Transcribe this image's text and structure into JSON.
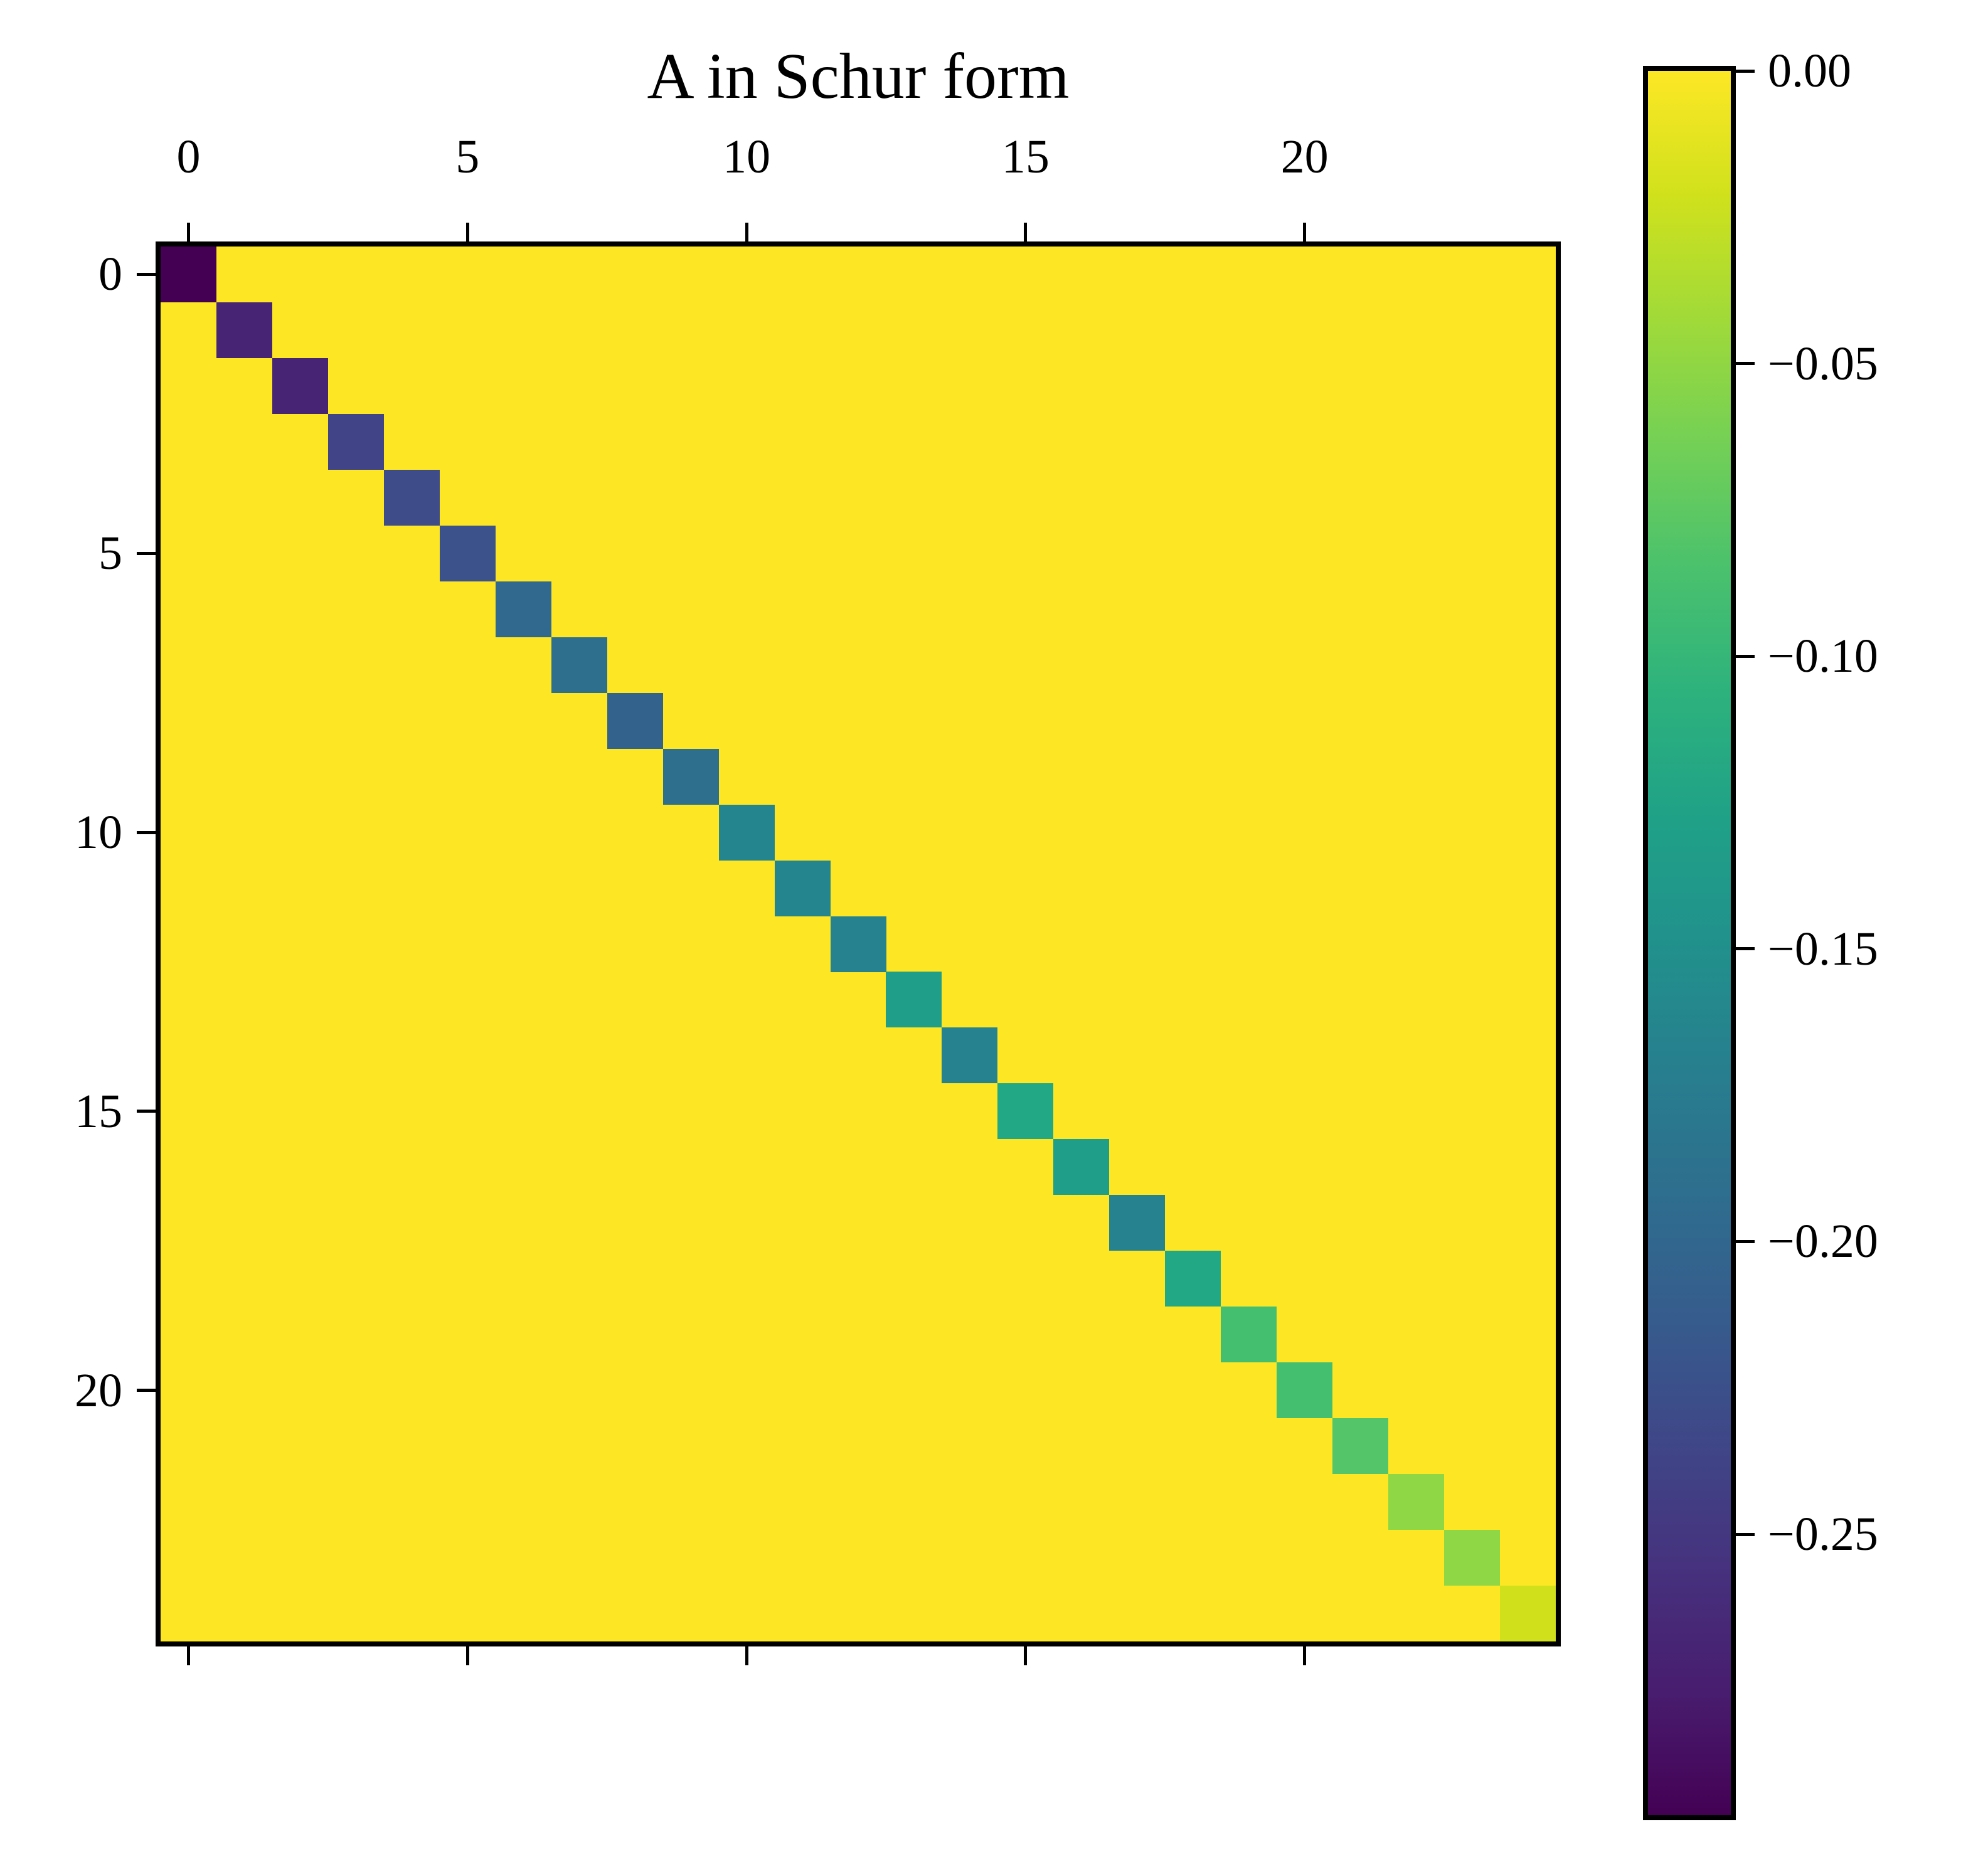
{
  "chart_data": {
    "type": "heatmap",
    "title": "A in Schur form",
    "xlabel": "",
    "ylabel": "",
    "matrix_size": [
      25,
      25
    ],
    "description": "25x25 matrix; all off-diagonal entries are 0, diagonal entries negative",
    "off_diagonal_value": 0.0,
    "diagonal_values": [
      -0.298,
      -0.27,
      -0.27,
      -0.25,
      -0.24,
      -0.235,
      -0.205,
      -0.195,
      -0.21,
      -0.195,
      -0.165,
      -0.165,
      -0.17,
      -0.13,
      -0.17,
      -0.11,
      -0.13,
      -0.17,
      -0.11,
      -0.085,
      -0.085,
      -0.075,
      -0.04,
      -0.04,
      -0.012
    ],
    "diagonal_colors": [
      "#440154",
      "#482475",
      "#482475",
      "#414487",
      "#3e4c8a",
      "#3b528b",
      "#31688e",
      "#2e6f8e",
      "#33638d",
      "#2e6f8e",
      "#25858e",
      "#25858e",
      "#26828e",
      "#1f9e89",
      "#26828e",
      "#22a884",
      "#1f9e89",
      "#26828e",
      "#22a884",
      "#44bf70",
      "#44bf70",
      "#54c568",
      "#8fd744",
      "#8fd744",
      "#d0e11c"
    ],
    "background_color": "#fde725",
    "x_ticks": [
      0,
      5,
      10,
      15,
      20
    ],
    "y_ticks": [
      0,
      5,
      10,
      15,
      20
    ],
    "x_tick_labels": [
      "0",
      "5",
      "10",
      "15",
      "20"
    ],
    "y_tick_labels": [
      "0",
      "5",
      "10",
      "15",
      "20"
    ],
    "xaxis_position": "top",
    "colormap": "viridis",
    "colorbar": {
      "vmin": -0.298,
      "vmax": 0.0,
      "ticks": [
        0.0,
        -0.05,
        -0.1,
        -0.15,
        -0.2,
        -0.25
      ],
      "tick_labels": [
        "0.00",
        "−0.05",
        "−0.10",
        "−0.15",
        "−0.20",
        "−0.25"
      ]
    },
    "grid": false
  }
}
